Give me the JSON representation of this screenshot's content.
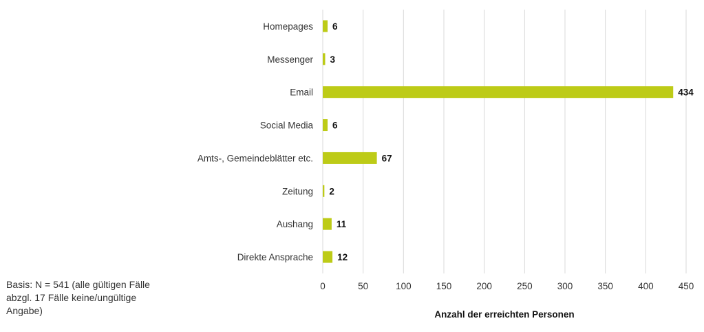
{
  "chart_data": {
    "type": "bar",
    "orientation": "horizontal",
    "categories": [
      "Homepages",
      "Messenger",
      "Email",
      "Social Media",
      "Amts-, Gemeindeblätter etc.",
      "Zeitung",
      "Aushang",
      "Direkte Ansprache"
    ],
    "values": [
      6,
      3,
      434,
      6,
      67,
      2,
      11,
      12
    ],
    "data_labels": [
      "6",
      "3",
      "434",
      "6",
      "67",
      "2",
      "11",
      "12"
    ],
    "xlabel": "Anzahl der erreichten Personen",
    "ylabel": "",
    "xlim": [
      0,
      450
    ],
    "xticks": [
      "0",
      "50",
      "100",
      "150",
      "200",
      "250",
      "300",
      "350",
      "400",
      "450"
    ],
    "grid": true,
    "bar_color": "#BDCB17"
  },
  "note": "Basis: N = 541 (alle gültigen Fälle abzgl. 17 Fälle keine/ungültige Angabe)"
}
